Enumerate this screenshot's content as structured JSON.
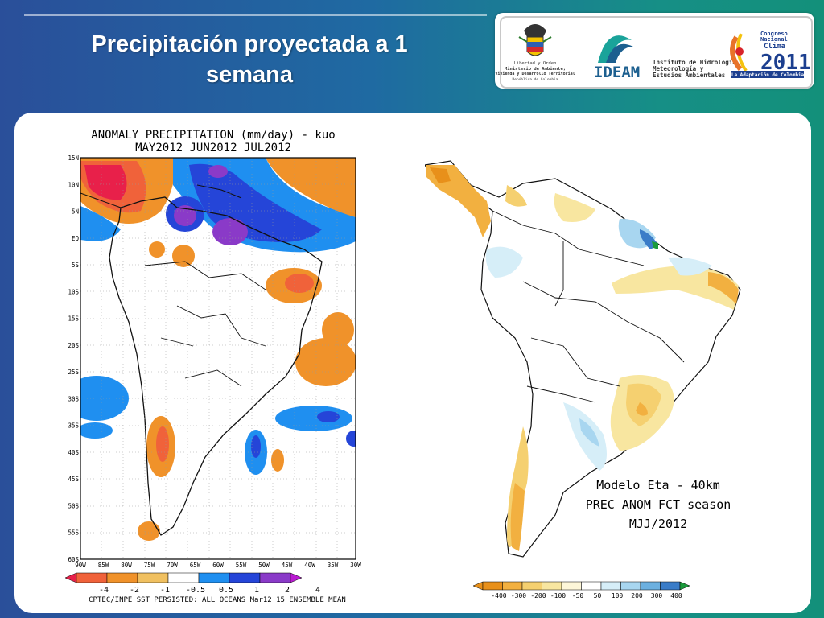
{
  "slide": {
    "title_line1": "Precipitación proyectada a 1",
    "title_line2": "semana"
  },
  "logos": {
    "colombia_text1": "Libertad y Orden",
    "colombia_text2": "Ministerio de Ambiente,",
    "colombia_text3": "Vivienda y Desarrollo Territorial",
    "colombia_text4": "República de Colombia",
    "ideam_name": "IDEAM",
    "ideam_desc1": "Instituto de Hidrología,",
    "ideam_desc2": "Meteorología y",
    "ideam_desc3": "Estudios Ambientales",
    "congreso1": "Congreso",
    "congreso2": "Nacional",
    "congreso3": "Clima",
    "congreso_year": "2011",
    "congreso_tag": "La Adaptación de Colombia"
  },
  "left_map": {
    "title1": "ANOMALY PRECIPITATION (mm/day) - kuo",
    "title2": "MAY2012 JUN2012 JUL2012",
    "lat_labels": [
      "15N",
      "10N",
      "5N",
      "EQ",
      "5S",
      "10S",
      "15S",
      "20S",
      "25S",
      "30S",
      "35S",
      "40S",
      "45S",
      "50S",
      "55S",
      "60S"
    ],
    "lon_labels": [
      "90W",
      "85W",
      "80W",
      "75W",
      "70W",
      "65W",
      "60W",
      "55W",
      "50W",
      "45W",
      "40W",
      "35W",
      "30W"
    ],
    "legend_labels": [
      "-4",
      "-2",
      "-1",
      "-0.5",
      "0.5",
      "1",
      "2",
      "4"
    ],
    "legend_colors": [
      "#e8204a",
      "#f0623a",
      "#f0922a",
      "#f0c060",
      "#ffffff",
      "#1f8ff0",
      "#2545d8",
      "#8a3ac8",
      "#b81ad0"
    ],
    "footer": "CPTEC/INPE SST PERSISTED: ALL OCEANS Mar12 15 ENSEMBLE MEAN"
  },
  "right_map": {
    "caption1": "Modelo Eta - 40km",
    "caption2": "PREC ANOM FCT season",
    "caption3": "MJJ/2012",
    "legend_labels": [
      "-400",
      "-300",
      "-200",
      "-100",
      "-50",
      "50",
      "100",
      "200",
      "300",
      "400"
    ],
    "legend_colors": [
      "#e8901a",
      "#f2b040",
      "#f5d070",
      "#f8e6a0",
      "#fdf6d8",
      "#ffffff",
      "#d6eef8",
      "#a8d6f0",
      "#6cb0e0",
      "#3a7cc8",
      "#1c9a3c"
    ]
  }
}
